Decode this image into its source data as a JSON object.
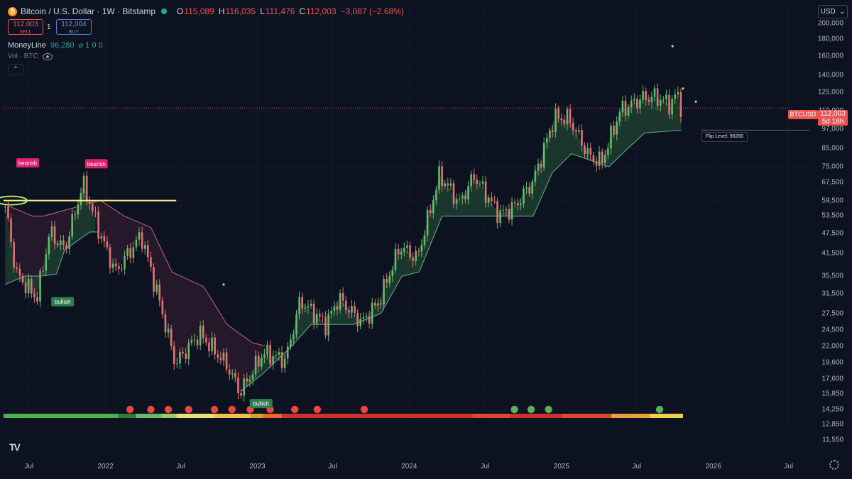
{
  "header": {
    "symbol_title": "Bitcoin / U.S. Dollar · 1W · Bitstamp",
    "coin_glyph": "₿",
    "ohlc": [
      {
        "key": "O",
        "value": "115,089"
      },
      {
        "key": "H",
        "value": "116,035"
      },
      {
        "key": "L",
        "value": "111,476"
      },
      {
        "key": "C",
        "value": "112,003"
      }
    ],
    "change": "−3,087 (−2.68%)"
  },
  "trade": {
    "sell_price": "112,003",
    "sell_label": "SELL",
    "quantity": "1",
    "buy_price": "112,004",
    "buy_label": "BUY"
  },
  "indicator": {
    "name": "MoneyLine",
    "value": "96,280",
    "params": "⌀ 1 0 0",
    "volume_label": "Vol · BTC",
    "collapse_glyph": "⌃"
  },
  "currency": {
    "label": "USD",
    "chevron": "⌄"
  },
  "price_tag": {
    "symbol": "BTCUSD",
    "price": "112,003",
    "countdown": "5d 18h"
  },
  "flip_level": {
    "label": "Flip Level: 96280"
  },
  "logo_text": "TV",
  "colors": {
    "bull": "#66bb6a",
    "bear": "#e57373",
    "band_bull": "#1d3d30",
    "band_bear": "#2a1a2e",
    "trail_bear": "#a85a78",
    "yellow": "#f0f27a",
    "background": "#0c1220"
  },
  "chart_data": {
    "type": "candlestick",
    "scale": "log",
    "ylim": [
      10500,
      230000
    ],
    "x_range": [
      "2021-05-01",
      "2026-08-20"
    ],
    "y_ticks": [
      200000,
      180000,
      160000,
      140000,
      125000,
      110000,
      97000,
      85000,
      75000,
      67500,
      59500,
      53500,
      47500,
      41500,
      35500,
      31500,
      27500,
      24500,
      22000,
      19600,
      17600,
      15850,
      14250,
      12850,
      11550
    ],
    "y_tick_labels": [
      "200,000",
      "180,000",
      "160,000",
      "140,000",
      "125,000",
      "110,000",
      "97,000",
      "85,000",
      "75,000",
      "67,500",
      "59,500",
      "53,500",
      "47,500",
      "41,500",
      "35,500",
      "31,500",
      "27,500",
      "24,500",
      "22,000",
      "19,600",
      "17,600",
      "15,850",
      "14,250",
      "12,850",
      "11,550"
    ],
    "x_ticks": [
      {
        "label": "Jul",
        "date": "2021-07-01"
      },
      {
        "label": "2022",
        "date": "2022-01-01"
      },
      {
        "label": "Jul",
        "date": "2022-07-01"
      },
      {
        "label": "2023",
        "date": "2023-01-01"
      },
      {
        "label": "Jul",
        "date": "2023-07-01"
      },
      {
        "label": "2024",
        "date": "2024-01-01"
      },
      {
        "label": "Jul",
        "date": "2024-07-01"
      },
      {
        "label": "2025",
        "date": "2025-01-01"
      },
      {
        "label": "Jul",
        "date": "2025-07-01"
      },
      {
        "label": "2026",
        "date": "2026-01-01"
      },
      {
        "label": "Jul",
        "date": "2026-07-01"
      }
    ],
    "price_path": [
      [
        "2021-05-05",
        57000
      ],
      [
        "2021-06-01",
        36000
      ],
      [
        "2021-07-20",
        30500
      ],
      [
        "2021-08-20",
        48000
      ],
      [
        "2021-09-25",
        42500
      ],
      [
        "2021-11-08",
        67000
      ],
      [
        "2021-12-20",
        47000
      ],
      [
        "2022-01-25",
        36500
      ],
      [
        "2022-03-28",
        47000
      ],
      [
        "2022-05-10",
        30000
      ],
      [
        "2022-06-18",
        19500
      ],
      [
        "2022-08-15",
        24000
      ],
      [
        "2022-10-20",
        19300
      ],
      [
        "2022-11-21",
        16000
      ],
      [
        "2023-01-15",
        21000
      ],
      [
        "2023-03-10",
        20000
      ],
      [
        "2023-04-14",
        30000
      ],
      [
        "2023-06-15",
        25500
      ],
      [
        "2023-07-15",
        30500
      ],
      [
        "2023-09-10",
        25800
      ],
      [
        "2023-10-20",
        29800
      ],
      [
        "2023-12-10",
        43500
      ],
      [
        "2024-01-20",
        40000
      ],
      [
        "2024-03-14",
        71000
      ],
      [
        "2024-05-01",
        58500
      ],
      [
        "2024-06-05",
        70500
      ],
      [
        "2024-08-05",
        54000
      ],
      [
        "2024-09-10",
        57000
      ],
      [
        "2024-10-25",
        68000
      ],
      [
        "2024-12-15",
        105000
      ],
      [
        "2025-01-20",
        104000
      ],
      [
        "2025-03-10",
        80000
      ],
      [
        "2025-04-08",
        77500
      ],
      [
        "2025-05-22",
        110000
      ],
      [
        "2025-07-14",
        120000
      ],
      [
        "2025-08-14",
        121000
      ],
      [
        "2025-09-20",
        115000
      ],
      [
        "2025-10-06",
        124000
      ],
      [
        "2025-10-16",
        112003
      ]
    ],
    "moneyline_bull": [
      [
        "2021-05-05",
        33500
      ],
      [
        "2021-06-20",
        35500
      ],
      [
        "2021-07-31",
        35500
      ],
      [
        "2021-09-05",
        36000
      ],
      [
        "2021-09-25",
        42500
      ],
      [
        "2021-11-25",
        48000
      ],
      [
        "2021-12-12",
        48000
      ],
      [
        "2022-11-24",
        16200
      ],
      [
        "2023-01-16",
        18300
      ],
      [
        "2023-03-25",
        22000
      ],
      [
        "2023-05-10",
        25500
      ],
      [
        "2023-08-20",
        25500
      ],
      [
        "2023-10-25",
        27500
      ],
      [
        "2023-12-15",
        35500
      ],
      [
        "2024-01-25",
        36500
      ],
      [
        "2024-03-20",
        53500
      ],
      [
        "2024-10-25",
        53500
      ],
      [
        "2024-12-10",
        72000
      ],
      [
        "2025-01-25",
        82000
      ],
      [
        "2025-04-25",
        75000
      ],
      [
        "2025-06-05",
        84000
      ],
      [
        "2025-07-20",
        94500
      ],
      [
        "2025-10-16",
        96280
      ]
    ],
    "moneyline_bear": [
      [
        "2021-05-10",
        57500
      ],
      [
        "2021-07-10",
        53500
      ],
      [
        "2021-08-05",
        53500
      ],
      [
        "2021-12-20",
        59500
      ],
      [
        "2022-02-15",
        53500
      ],
      [
        "2022-04-20",
        49500
      ],
      [
        "2022-06-10",
        36500
      ],
      [
        "2022-08-25",
        33000
      ],
      [
        "2022-10-20",
        25500
      ],
      [
        "2022-12-20",
        22500
      ],
      [
        "2023-01-20",
        22000
      ]
    ],
    "yellow_level": {
      "value": 59500,
      "from": "2021-05-01",
      "to": "2022-06-20"
    },
    "highlight_ellipse": {
      "date": "2021-05-20",
      "value": 59500
    },
    "signal_labels": [
      {
        "text": "bearish",
        "date": "2021-06-28",
        "price": 77000,
        "type": "bearish"
      },
      {
        "text": "bullish",
        "date": "2021-09-20",
        "price": 29800,
        "type": "bullish"
      },
      {
        "text": "bearish",
        "date": "2021-12-10",
        "price": 76500,
        "type": "bearish"
      },
      {
        "text": "bullish",
        "date": "2023-01-10",
        "price": 14850,
        "type": "bullish"
      }
    ],
    "outlier_dots": [
      {
        "date": "2022-10-12",
        "price": 33500
      },
      {
        "date": "2025-09-25",
        "price": 171000
      },
      {
        "date": "2025-10-20",
        "price": 128000
      },
      {
        "date": "2025-11-20",
        "price": 117000
      }
    ],
    "momentum_strip": {
      "segments": [
        {
          "to": "2022-02-01",
          "color": "#4caf50"
        },
        {
          "to": "2022-03-15",
          "color": "#2e7d32"
        },
        {
          "to": "2022-05-15",
          "color": "#66bb6a"
        },
        {
          "to": "2022-06-20",
          "color": "#9ccc65"
        },
        {
          "to": "2022-09-20",
          "color": "#e6e07a"
        },
        {
          "to": "2022-12-15",
          "color": "#f0c050"
        },
        {
          "to": "2023-01-15",
          "color": "#d6a030"
        },
        {
          "to": "2023-03-01",
          "color": "#e56a2c"
        },
        {
          "to": "2024-06-01",
          "color": "#c8342a"
        },
        {
          "to": "2024-09-01",
          "color": "#d84a2a"
        },
        {
          "to": "2025-01-01",
          "color": "#c8342a"
        },
        {
          "to": "2025-05-01",
          "color": "#d84a2a"
        },
        {
          "to": "2025-08-01",
          "color": "#e8a03a"
        },
        {
          "to": "2025-10-20",
          "color": "#f0d24a"
        }
      ],
      "red_dots": [
        "2022-03-01",
        "2022-04-20",
        "2022-06-01",
        "2022-07-20",
        "2022-09-20",
        "2022-11-01",
        "2022-12-15",
        "2023-02-01",
        "2023-04-01",
        "2023-05-25",
        "2023-09-15"
      ],
      "green_dots": [
        "2024-09-10",
        "2024-10-20",
        "2024-12-01",
        "2025-08-25"
      ]
    }
  }
}
